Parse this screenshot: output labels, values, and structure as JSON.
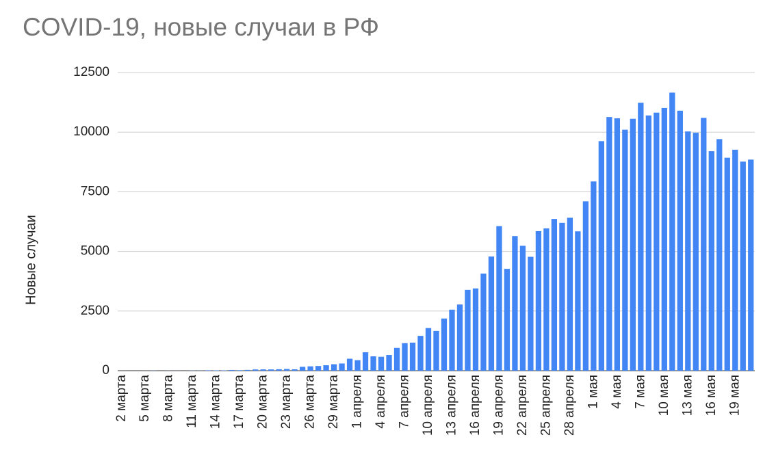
{
  "chart_data": {
    "type": "bar",
    "title": "COVID-19, новые случаи в РФ",
    "y_label": "Новые случаи",
    "categories": [
      "2 марта",
      null,
      null,
      "5 марта",
      null,
      null,
      "8 марта",
      null,
      null,
      "11 марта",
      null,
      null,
      "14 марта",
      null,
      null,
      "17 марта",
      null,
      null,
      "20 марта",
      null,
      null,
      "23 марта",
      null,
      null,
      "26 марта",
      null,
      null,
      "29 марта",
      null,
      null,
      "1 апреля",
      null,
      null,
      "4 апреля",
      null,
      null,
      "7 апреля",
      null,
      null,
      "10 апреля",
      null,
      null,
      "13 апреля",
      null,
      null,
      "16 апреля",
      null,
      null,
      "19 апреля",
      null,
      null,
      "22 апреля",
      null,
      null,
      "25 апреля",
      null,
      null,
      "28 апреля",
      null,
      null,
      "1 мая",
      null,
      null,
      "4 мая",
      null,
      null,
      "7 мая",
      null,
      null,
      "10 мая",
      null,
      null,
      "13 мая",
      null,
      null,
      "16 мая",
      null,
      null,
      "19 мая",
      null,
      null
    ],
    "values": [
      1,
      0,
      0,
      1,
      6,
      0,
      3,
      2,
      0,
      8,
      6,
      17,
      14,
      14,
      30,
      21,
      33,
      52,
      54,
      53,
      61,
      71,
      57,
      163,
      182,
      196,
      228,
      270,
      302,
      501,
      440,
      771,
      601,
      582,
      658,
      954,
      1154,
      1175,
      1459,
      1786,
      1667,
      2186,
      2558,
      2774,
      3388,
      3448,
      4070,
      4785,
      6060,
      4268,
      5642,
      5236,
      4774,
      5849,
      5966,
      6361,
      6198,
      6411,
      5841,
      7099,
      7933,
      9623,
      10633,
      10581,
      10102,
      10559,
      11231,
      10699,
      10817,
      11012,
      11656,
      10899,
      10028,
      9974,
      10598,
      9200,
      9709,
      8926,
      9263,
      8764,
      8849
    ],
    "color": "#4285f4",
    "ylim": [
      0,
      12500
    ],
    "yticks": [
      0,
      2500,
      5000,
      7500,
      10000,
      12500
    ],
    "grid": true
  }
}
